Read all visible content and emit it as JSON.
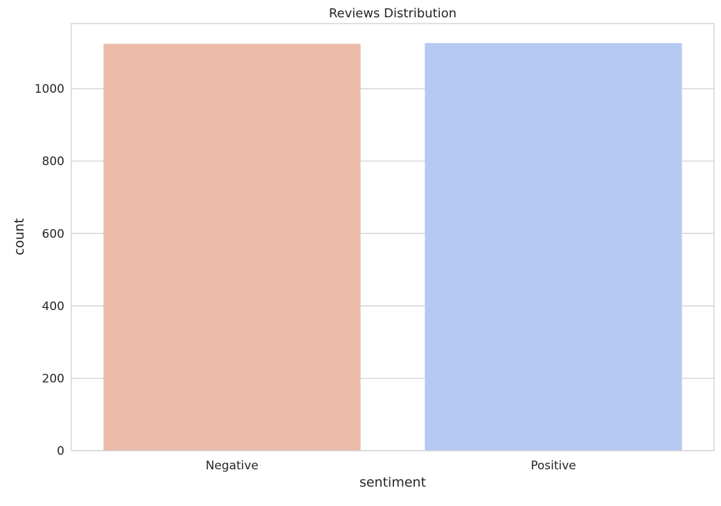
{
  "chart_data": {
    "type": "bar",
    "title": "Reviews Distribution",
    "xlabel": "sentiment",
    "ylabel": "count",
    "categories": [
      "Negative",
      "Positive"
    ],
    "values": [
      1124,
      1126
    ],
    "colors": [
      "#ecbba9",
      "#b5c9f3"
    ],
    "ylim": [
      0,
      1180
    ],
    "yticks": [
      0,
      200,
      400,
      600,
      800,
      1000
    ],
    "grid": true,
    "grid_axis": "y"
  }
}
